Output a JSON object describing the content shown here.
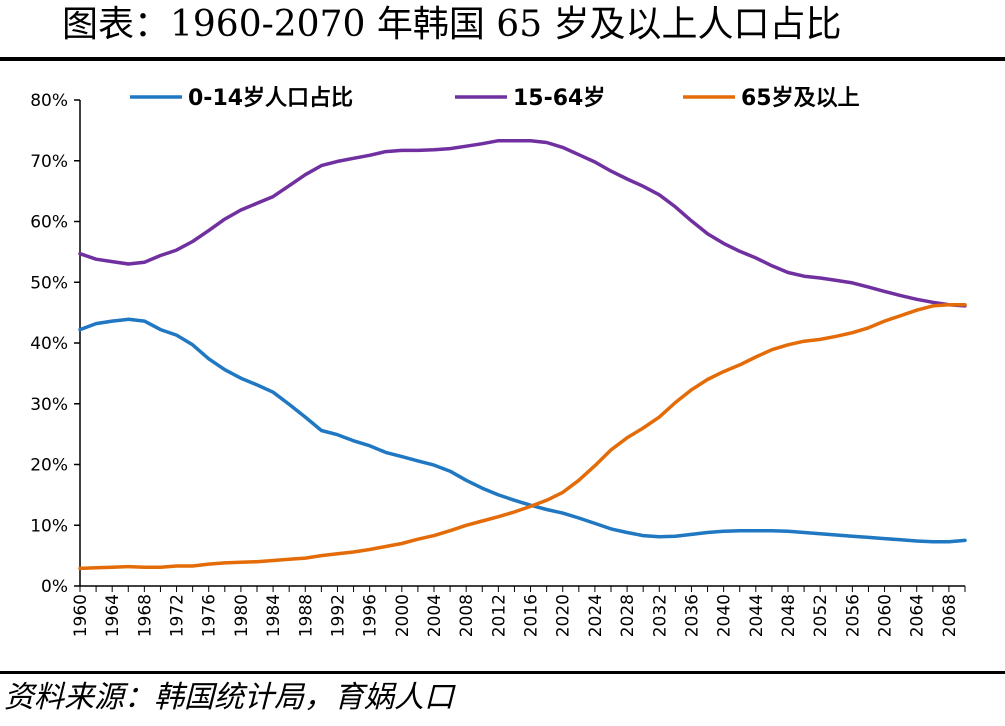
{
  "title": "图表：1960-2070 年韩国 65 岁及以上人口占比",
  "source": "资料来源：韩国统计局，育娲人口",
  "chart_data": {
    "type": "line",
    "title": "图表：1960-2070 年韩国 65 岁及以上人口占比",
    "xlabel": "",
    "ylabel": "",
    "ylim": [
      0,
      80
    ],
    "xlim": [
      1960,
      2070
    ],
    "y_ticks": [
      "0%",
      "10%",
      "20%",
      "30%",
      "40%",
      "50%",
      "60%",
      "70%",
      "80%"
    ],
    "x_ticks": [
      "1960",
      "1964",
      "1968",
      "1972",
      "1976",
      "1980",
      "1984",
      "1988",
      "1992",
      "1996",
      "2000",
      "2004",
      "2008",
      "2012",
      "2016",
      "2020",
      "2024",
      "2028",
      "2032",
      "2036",
      "2040",
      "2044",
      "2048",
      "2052",
      "2056",
      "2060",
      "2064",
      "2068"
    ],
    "legend_position": "top",
    "series": [
      {
        "name": "0-14岁人口占比",
        "color": "#1f78c1",
        "x": [
          1960,
          1962,
          1964,
          1966,
          1968,
          1970,
          1972,
          1974,
          1976,
          1978,
          1980,
          1982,
          1984,
          1986,
          1988,
          1990,
          1992,
          1994,
          1996,
          1998,
          2000,
          2002,
          2004,
          2006,
          2008,
          2010,
          2012,
          2014,
          2016,
          2018,
          2020,
          2022,
          2024,
          2026,
          2028,
          2030,
          2032,
          2034,
          2036,
          2038,
          2040,
          2042,
          2044,
          2046,
          2048,
          2050,
          2052,
          2054,
          2056,
          2058,
          2060,
          2062,
          2064,
          2066,
          2068,
          2070
        ],
        "values": [
          42.2,
          43.2,
          43.6,
          43.9,
          43.6,
          42.2,
          41.3,
          39.7,
          37.4,
          35.6,
          34.2,
          33.1,
          31.9,
          29.9,
          27.8,
          25.6,
          24.9,
          23.9,
          23.1,
          22.0,
          21.3,
          20.6,
          19.9,
          18.9,
          17.4,
          16.1,
          15.0,
          14.1,
          13.3,
          12.6,
          12.0,
          11.2,
          10.3,
          9.4,
          8.8,
          8.3,
          8.1,
          8.2,
          8.5,
          8.8,
          9.0,
          9.1,
          9.1,
          9.1,
          9.0,
          8.8,
          8.6,
          8.4,
          8.2,
          8.0,
          7.8,
          7.6,
          7.4,
          7.3,
          7.3,
          7.5
        ]
      },
      {
        "name": "15-64岁",
        "color": "#7030a0",
        "x": [
          1960,
          1962,
          1964,
          1966,
          1968,
          1970,
          1972,
          1974,
          1976,
          1978,
          1980,
          1982,
          1984,
          1986,
          1988,
          1990,
          1992,
          1994,
          1996,
          1998,
          2000,
          2002,
          2004,
          2006,
          2008,
          2010,
          2012,
          2014,
          2016,
          2018,
          2020,
          2022,
          2024,
          2026,
          2028,
          2030,
          2032,
          2034,
          2036,
          2038,
          2040,
          2042,
          2044,
          2046,
          2048,
          2050,
          2052,
          2054,
          2056,
          2058,
          2060,
          2062,
          2064,
          2066,
          2068,
          2070
        ],
        "values": [
          54.7,
          53.8,
          53.4,
          53.0,
          53.3,
          54.4,
          55.3,
          56.7,
          58.5,
          60.4,
          61.9,
          63.0,
          64.1,
          65.9,
          67.7,
          69.2,
          69.9,
          70.4,
          70.9,
          71.5,
          71.7,
          71.7,
          71.8,
          72.0,
          72.4,
          72.8,
          73.3,
          73.3,
          73.3,
          73.0,
          72.2,
          71.0,
          69.8,
          68.3,
          67.0,
          65.8,
          64.4,
          62.4,
          60.1,
          58.0,
          56.4,
          55.1,
          54.0,
          52.7,
          51.6,
          51.0,
          50.7,
          50.3,
          49.9,
          49.2,
          48.5,
          47.8,
          47.2,
          46.7,
          46.3,
          46.1
        ]
      },
      {
        "name": "65岁及以上",
        "color": "#e36c09",
        "x": [
          1960,
          1962,
          1964,
          1966,
          1968,
          1970,
          1972,
          1974,
          1976,
          1978,
          1980,
          1982,
          1984,
          1986,
          1988,
          1990,
          1992,
          1994,
          1996,
          1998,
          2000,
          2002,
          2004,
          2006,
          2008,
          2010,
          2012,
          2014,
          2016,
          2018,
          2020,
          2022,
          2024,
          2026,
          2028,
          2030,
          2032,
          2034,
          2036,
          2038,
          2040,
          2042,
          2044,
          2046,
          2048,
          2050,
          2052,
          2054,
          2056,
          2058,
          2060,
          2062,
          2064,
          2066,
          2068,
          2070
        ],
        "values": [
          2.9,
          3.0,
          3.1,
          3.2,
          3.1,
          3.1,
          3.3,
          3.3,
          3.6,
          3.8,
          3.9,
          4.0,
          4.2,
          4.4,
          4.6,
          5.0,
          5.3,
          5.6,
          6.0,
          6.5,
          7.0,
          7.7,
          8.3,
          9.1,
          10.0,
          10.7,
          11.4,
          12.2,
          13.1,
          14.1,
          15.4,
          17.4,
          19.8,
          22.4,
          24.4,
          26.0,
          27.8,
          30.2,
          32.3,
          34.0,
          35.3,
          36.4,
          37.7,
          38.9,
          39.7,
          40.3,
          40.6,
          41.1,
          41.7,
          42.5,
          43.6,
          44.5,
          45.4,
          46.1,
          46.3,
          46.3
        ]
      }
    ]
  }
}
